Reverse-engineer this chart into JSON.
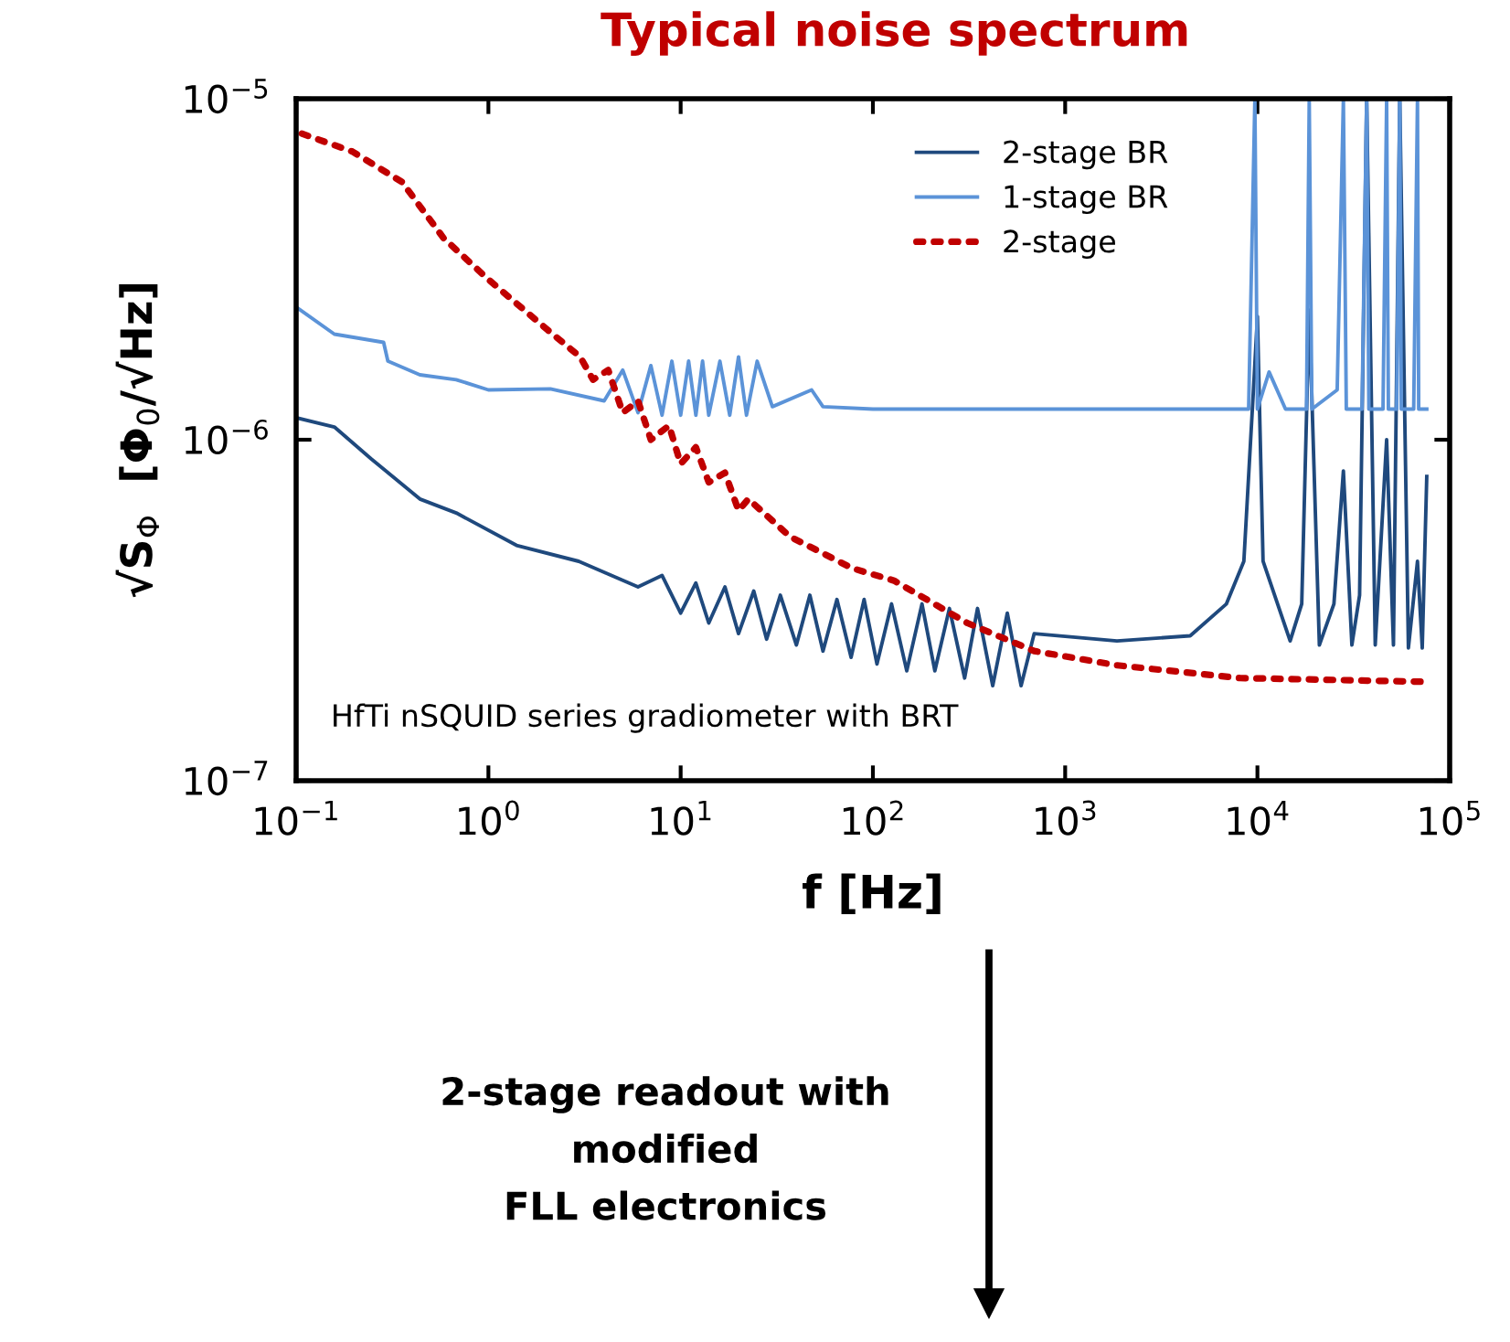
{
  "chart_data": {
    "type": "line",
    "title": "Typical noise spectrum",
    "xlabel": "f [Hz]",
    "ylabel": "√S$_{Φ}$  [Φ$_{0}$/√Hz]",
    "log": "xy",
    "xlim": [
      0.1,
      100000
    ],
    "ylim": [
      1e-07,
      1e-05
    ],
    "xticks": [
      {
        "value": 0.1,
        "label": "10$^{−1}$"
      },
      {
        "value": 1,
        "label": "10$^{0}$"
      },
      {
        "value": 10,
        "label": "10$^{1}$"
      },
      {
        "value": 100,
        "label": "10$^{2}$"
      },
      {
        "value": 1000,
        "label": "10$^{3}$"
      },
      {
        "value": 10000,
        "label": "10$^{4}$"
      },
      {
        "value": 100000,
        "label": "10$^{5}$"
      }
    ],
    "yticks": [
      {
        "value": 1e-07,
        "label": "10$^{−7}$"
      },
      {
        "value": 1e-06,
        "label": "10$^{−6}$"
      },
      {
        "value": 1e-05,
        "label": "10$^{−5}$"
      }
    ],
    "grid": false,
    "legend": "top right",
    "marker": "none",
    "series": [
      {
        "name": "2-stage BR",
        "color": "#1f497d",
        "line_style": "solid",
        "x": [
          0.1,
          0.158,
          0.245,
          0.44,
          0.68,
          1.4,
          2.95,
          6.0,
          8,
          10,
          12,
          14,
          17,
          20,
          24,
          28,
          33,
          40,
          47,
          55,
          65,
          77,
          90,
          105,
          125,
          150,
          180,
          210,
          250,
          300,
          350,
          420,
          500,
          590,
          690,
          1860,
          4470,
          6900,
          8500,
          9600,
          10000,
          10700,
          14800,
          17000,
          18600,
          21000,
          25000,
          28000,
          31000,
          34000,
          37000,
          41000,
          47000,
          51000,
          55000,
          61000,
          68000,
          72000,
          76000
        ],
        "values": [
          1.16e-06,
          1.09e-06,
          8.8e-07,
          6.7e-07,
          6.1e-07,
          4.9e-07,
          4.4e-07,
          3.7e-07,
          4e-07,
          3.1e-07,
          3.8e-07,
          2.9e-07,
          3.7e-07,
          2.7e-07,
          3.6e-07,
          2.6e-07,
          3.5e-07,
          2.5e-07,
          3.5e-07,
          2.4e-07,
          3.4e-07,
          2.3e-07,
          3.4e-07,
          2.2e-07,
          3.3e-07,
          2.1e-07,
          3.3e-07,
          2.1e-07,
          3.2e-07,
          2e-07,
          3.2e-07,
          1.9e-07,
          3.1e-07,
          1.9e-07,
          2.7e-07,
          2.57e-07,
          2.66e-07,
          3.3e-07,
          4.4e-07,
          1.5e-06,
          2.3e-06,
          4.4e-07,
          2.57e-07,
          3.3e-07,
          2.4e-06,
          2.5e-07,
          3.3e-07,
          8.1e-07,
          2.5e-07,
          3.5e-07,
          1e-05,
          2.5e-07,
          1e-06,
          2.5e-07,
          1e-05,
          2.45e-07,
          4.4e-07,
          2.45e-07,
          7.8e-07
        ]
      },
      {
        "name": "1-stage BR",
        "color": "#5b93d8",
        "line_style": "solid",
        "x": [
          0.1,
          0.158,
          0.285,
          0.3,
          0.44,
          0.68,
          1.0,
          2.1,
          4,
          5,
          6,
          7,
          8,
          9,
          10,
          11,
          12,
          13,
          14,
          16,
          18,
          20,
          22,
          25,
          30,
          48,
          55,
          100,
          1000,
          9000,
          9700,
          10000,
          11500,
          14000,
          18000,
          18600,
          19200,
          26000,
          28000,
          29000,
          35000,
          37000,
          38000,
          45000,
          47000,
          48000,
          53000,
          55000,
          56000,
          65000,
          68000,
          69000,
          76000
        ],
        "values": [
          2.45e-06,
          2.04e-06,
          1.93e-06,
          1.7e-06,
          1.55e-06,
          1.5e-06,
          1.4e-06,
          1.41e-06,
          1.3e-06,
          1.6e-06,
          1.2e-06,
          1.65e-06,
          1.18e-06,
          1.7e-06,
          1.18e-06,
          1.7e-06,
          1.18e-06,
          1.7e-06,
          1.18e-06,
          1.7e-06,
          1.18e-06,
          1.75e-06,
          1.18e-06,
          1.7e-06,
          1.25e-06,
          1.4e-06,
          1.25e-06,
          1.23e-06,
          1.23e-06,
          1.23e-06,
          1e-05,
          1.23e-06,
          1.58e-06,
          1.23e-06,
          1.23e-06,
          1e-05,
          1.23e-06,
          1.4e-06,
          1e-05,
          1.23e-06,
          1.23e-06,
          1e-05,
          1.23e-06,
          1.23e-06,
          1e-05,
          1.23e-06,
          1.23e-06,
          1e-05,
          1.23e-06,
          1.23e-06,
          1e-05,
          1.23e-06,
          1.23e-06
        ]
      },
      {
        "name": "2-stage",
        "color": "#c00000",
        "line_style": "dotted",
        "x": [
          0.107,
          0.196,
          0.355,
          0.585,
          1.0,
          2.03,
          3,
          3.5,
          4.2,
          5,
          6,
          7,
          8.7,
          10,
          12,
          14,
          17,
          20,
          22.5,
          37,
          78,
          129,
          310,
          690,
          1860,
          8100,
          76000
        ],
        "values": [
          7.9e-06,
          7e-06,
          5.7e-06,
          3.9e-06,
          2.95e-06,
          2.1e-06,
          1.75e-06,
          1.5e-06,
          1.6e-06,
          1.2e-06,
          1.3e-06,
          1e-06,
          1.1e-06,
          8.5e-07,
          9.5e-07,
          7.5e-07,
          8e-07,
          6.2e-07,
          6.7e-07,
          5.2e-07,
          4.2e-07,
          3.86e-07,
          2.9e-07,
          2.4e-07,
          2.18e-07,
          2e-07,
          1.95e-07
        ]
      }
    ],
    "annotations": [
      "HfTi nSQUID series gradiometer with BRT",
      "2-stage readout with\nmodified\nFLL electronics"
    ]
  }
}
